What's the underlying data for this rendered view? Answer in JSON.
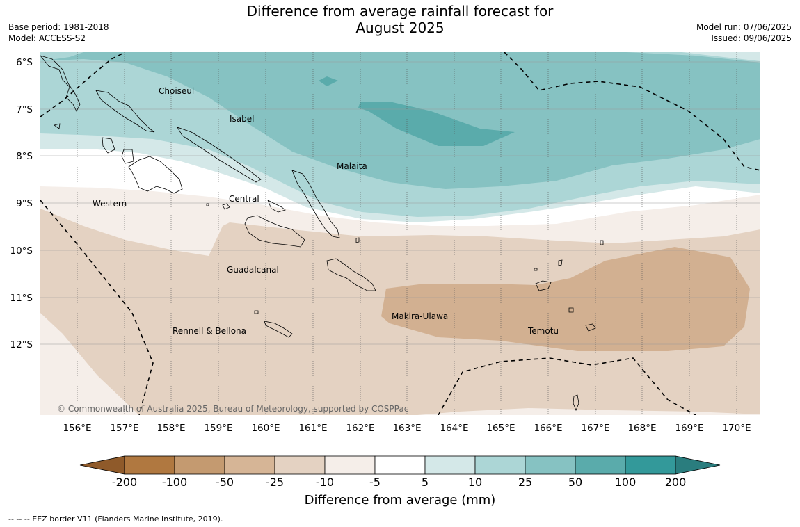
{
  "title": {
    "line1": "Difference from average rainfall forecast for",
    "line2": "August 2025"
  },
  "meta": {
    "base_period": "Base period: 1981-2018",
    "model": "Model: ACCESS-S2",
    "model_run": "Model run: 07/06/2025",
    "issued": "Issued: 09/06/2025"
  },
  "map": {
    "regions": [
      "Choiseul",
      "Isabel",
      "Malaita",
      "Western",
      "Central",
      "Guadalcanal",
      "Makira-Ulawa",
      "Rennell & Bellona",
      "Temotu"
    ],
    "lat_ticks": [
      "6°S",
      "7°S",
      "8°S",
      "9°S",
      "10°S",
      "11°S",
      "12°S"
    ],
    "lon_ticks": [
      "156°E",
      "157°E",
      "158°E",
      "159°E",
      "160°E",
      "161°E",
      "162°E",
      "163°E",
      "164°E",
      "165°E",
      "166°E",
      "167°E",
      "168°E",
      "169°E",
      "170°E"
    ],
    "copyright": "© Commonwealth of Australia 2025, Bureau of Meteorology, supported by COSPPac"
  },
  "colorbar": {
    "ticks": [
      "-200",
      "-100",
      "-50",
      "-25",
      "-10",
      "-5",
      "5",
      "10",
      "25",
      "50",
      "100",
      "200"
    ],
    "colors": [
      "#8f5a2a",
      "#b07840",
      "#c49a70",
      "#d6b596",
      "#e4d2c2",
      "#f5eee9",
      "#ffffff",
      "#d4e8e8",
      "#acd6d6",
      "#86c2c2",
      "#5aabab",
      "#33999a",
      "#2a7d7e"
    ],
    "title": "Difference from average (mm)"
  },
  "footnote": "-- -- -- EEZ border V11 (Flanders Marine Institute, 2019)."
}
